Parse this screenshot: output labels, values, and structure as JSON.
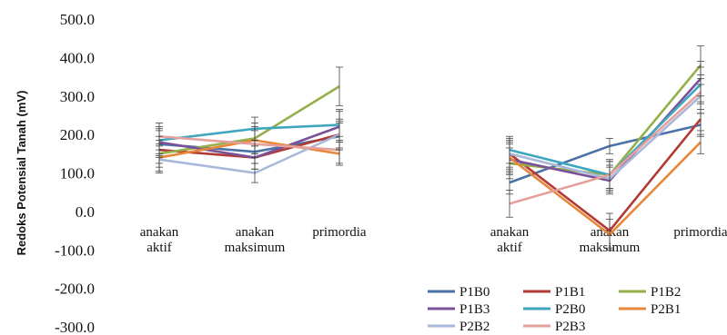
{
  "chart_data": {
    "type": "line",
    "title": "",
    "ylabel": "Redoks Potensial Tanah (mV)",
    "xlabel": "",
    "ylim": [
      -300,
      500
    ],
    "yticks": [
      "500.0",
      "400.0",
      "300.0",
      "200.0",
      "100.0",
      "0.0",
      "-100.0",
      "-200.0",
      "-300.0"
    ],
    "ytick_values": [
      500,
      400,
      300,
      200,
      100,
      0,
      -100,
      -200,
      -300
    ],
    "grid": false,
    "legend_position": "bottom-right",
    "groups": [
      {
        "categories": [
          [
            "anakan",
            "aktif"
          ],
          [
            "anakan",
            "maksimum"
          ],
          [
            "primordia"
          ]
        ]
      },
      {
        "categories": [
          [
            "anakan",
            "aktif"
          ],
          [
            "anakan",
            "maksimum"
          ],
          [
            "primordia"
          ]
        ]
      }
    ],
    "series": [
      {
        "name": "P1B0",
        "color": "#4A72A8",
        "values": [
          [
            175,
            155,
            195
          ],
          [
            75,
            170,
            225
          ]
        ],
        "err": [
          [
            35,
            30,
            35
          ],
          [
            30,
            20,
            30
          ]
        ]
      },
      {
        "name": "P1B1",
        "color": "#B23A35",
        "values": [
          [
            160,
            140,
            200
          ],
          [
            150,
            -50,
            240
          ]
        ],
        "err": [
          [
            35,
            30,
            35
          ],
          [
            40,
            45,
            40
          ]
        ]
      },
      {
        "name": "P1B2",
        "color": "#93B04B",
        "values": [
          [
            150,
            190,
            325
          ],
          [
            125,
            95,
            380
          ]
        ],
        "err": [
          [
            35,
            40,
            50
          ],
          [
            40,
            40,
            50
          ]
        ]
      },
      {
        "name": "P1B3",
        "color": "#7A5099",
        "values": [
          [
            180,
            140,
            220
          ],
          [
            135,
            80,
            345
          ]
        ],
        "err": [
          [
            35,
            30,
            40
          ],
          [
            40,
            35,
            45
          ]
        ]
      },
      {
        "name": "P2B0",
        "color": "#3FA6BE",
        "values": [
          [
            185,
            215,
            225
          ],
          [
            160,
            95,
            330
          ]
        ],
        "err": [
          [
            35,
            30,
            40
          ],
          [
            35,
            35,
            45
          ]
        ]
      },
      {
        "name": "P2B1",
        "color": "#E8873A",
        "values": [
          [
            140,
            185,
            150
          ],
          [
            140,
            -60,
            180
          ]
        ],
        "err": [
          [
            35,
            35,
            30
          ],
          [
            40,
            40,
            30
          ]
        ]
      },
      {
        "name": "P2B2",
        "color": "#A9B8DA",
        "values": [
          [
            135,
            100,
            200
          ],
          [
            150,
            85,
            300
          ]
        ],
        "err": [
          [
            35,
            25,
            40
          ],
          [
            35,
            35,
            45
          ]
        ]
      },
      {
        "name": "P2B3",
        "color": "#E5A09C",
        "values": [
          [
            195,
            175,
            160
          ],
          [
            20,
            95,
            310
          ]
        ],
        "err": [
          [
            35,
            35,
            35
          ],
          [
            35,
            35,
            45
          ]
        ]
      }
    ]
  }
}
